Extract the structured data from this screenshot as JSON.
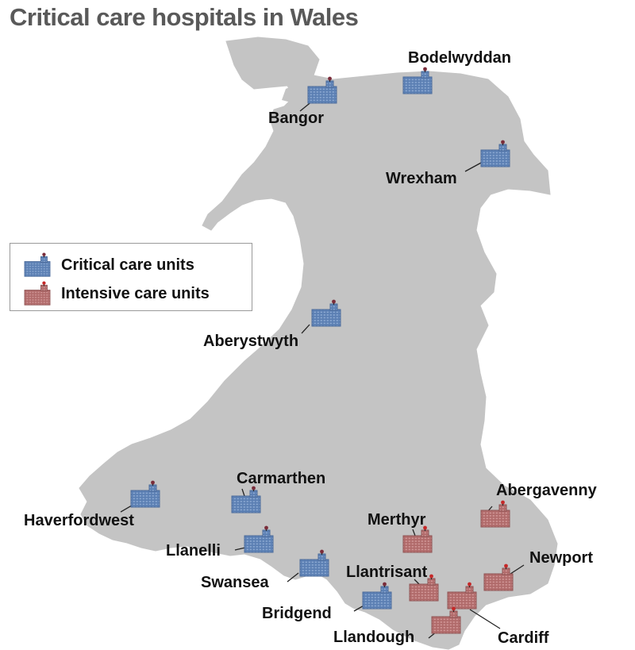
{
  "title": "Critical care hospitals in Wales",
  "legend": {
    "critical_label": "Critical care units",
    "intensive_label": "Intensive care units"
  },
  "colors": {
    "land": "#c4c4c4",
    "critical_care_unit": "#5b7fb3",
    "intensive_care_unit": "#b06a6a",
    "text": "#111111",
    "title": "#595959"
  },
  "hospitals": [
    {
      "name": "Bodelwyddan",
      "type": "critical"
    },
    {
      "name": "Bangor",
      "type": "critical"
    },
    {
      "name": "Wrexham",
      "type": "critical"
    },
    {
      "name": "Aberystwyth",
      "type": "critical"
    },
    {
      "name": "Carmarthen",
      "type": "critical"
    },
    {
      "name": "Haverfordwest",
      "type": "critical"
    },
    {
      "name": "Llanelli",
      "type": "critical"
    },
    {
      "name": "Swansea",
      "type": "critical"
    },
    {
      "name": "Bridgend",
      "type": "critical"
    },
    {
      "name": "Abergavenny",
      "type": "intensive"
    },
    {
      "name": "Merthyr",
      "type": "intensive"
    },
    {
      "name": "Newport",
      "type": "intensive"
    },
    {
      "name": "Llantrisant",
      "type": "intensive"
    },
    {
      "name": "Cardiff",
      "type": "intensive"
    },
    {
      "name": "Llandough",
      "type": "intensive"
    }
  ]
}
